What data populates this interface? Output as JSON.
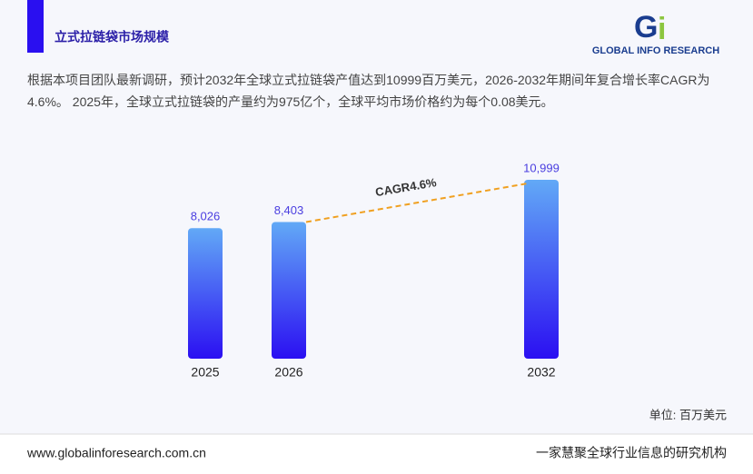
{
  "header": {
    "title": "立式拉链袋市场规模",
    "logo_text": "GLOBAL INFO RESEARCH"
  },
  "paragraph": "根据本项目团队最新调研，预计2032年全球立式拉链袋产值达到10999百万美元，2026-2032年期间年复合增长率CAGR为4.6%。 2025年，全球立式拉链袋的产量约为975亿个，全球平均市场价格约为每个0.08美元。",
  "chart_data": {
    "type": "bar",
    "categories": [
      "2025",
      "2026",
      "2032"
    ],
    "values": [
      8026,
      8403,
      10999
    ],
    "value_labels": [
      "8,026",
      "8,403",
      "10,999"
    ],
    "annotation": "CAGR4.6%",
    "unit_label": "单位: 百万美元",
    "colors": {
      "top": "#62a9f6",
      "bottom": "#2b0ff2",
      "label": "#4a3ee0",
      "annotation_line": "#f0a020"
    }
  },
  "footer": {
    "url": "www.globalinforesearch.com.cn",
    "slogan": "一家慧聚全球行业信息的研究机构"
  }
}
